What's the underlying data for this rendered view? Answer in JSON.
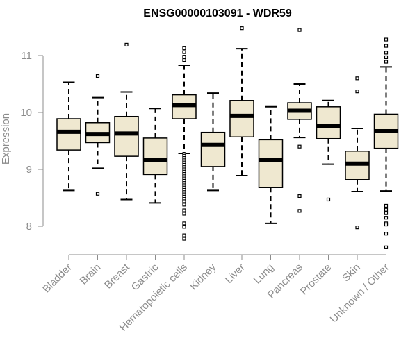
{
  "chart_data": {
    "type": "boxplot",
    "title": "ENSG00000103091 - WDR59",
    "xlabel": "",
    "ylabel": "Expression",
    "ylim": [
      7.6,
      11.5
    ],
    "yticks": [
      8,
      9,
      10,
      11
    ],
    "categories": [
      "Bladder",
      "Brain",
      "Breast",
      "Gastric",
      "Hematopoietic cells",
      "Kidney",
      "Liver",
      "Lung",
      "Pancreas",
      "Prostate",
      "Skin",
      "Unknown / Other"
    ],
    "boxes": [
      {
        "name": "Bladder",
        "whisker_low": 8.63,
        "q1": 9.34,
        "median": 9.66,
        "q3": 9.89,
        "whisker_high": 10.53,
        "outliers": []
      },
      {
        "name": "Brain",
        "whisker_low": 9.02,
        "q1": 9.47,
        "median": 9.62,
        "q3": 9.82,
        "whisker_high": 10.26,
        "outliers": [
          10.64,
          8.57
        ]
      },
      {
        "name": "Breast",
        "whisker_low": 8.47,
        "q1": 9.23,
        "median": 9.63,
        "q3": 9.93,
        "whisker_high": 10.36,
        "outliers": [
          11.19
        ]
      },
      {
        "name": "Gastric",
        "whisker_low": 8.41,
        "q1": 8.91,
        "median": 9.16,
        "q3": 9.55,
        "whisker_high": 10.07,
        "outliers": []
      },
      {
        "name": "Hematopoietic cells",
        "whisker_low": 9.28,
        "q1": 9.89,
        "median": 10.13,
        "q3": 10.31,
        "whisker_high": 10.83,
        "outliers": [
          11.13,
          11.06,
          10.98,
          10.92,
          9.27,
          9.24,
          9.2,
          9.16,
          9.12,
          9.08,
          9.04,
          9.0,
          8.96,
          8.92,
          8.88,
          8.84,
          8.8,
          8.76,
          8.72,
          8.68,
          8.64,
          8.6,
          8.56,
          8.52,
          8.48,
          8.44,
          8.38,
          8.28,
          8.22,
          8.05,
          7.99,
          7.84,
          7.78
        ]
      },
      {
        "name": "Kidney",
        "whisker_low": 8.63,
        "q1": 9.05,
        "median": 9.43,
        "q3": 9.65,
        "whisker_high": 10.34,
        "outliers": []
      },
      {
        "name": "Liver",
        "whisker_low": 8.89,
        "q1": 9.57,
        "median": 9.94,
        "q3": 10.21,
        "whisker_high": 11.12,
        "outliers": [
          11.48
        ]
      },
      {
        "name": "Lung",
        "whisker_low": 8.05,
        "q1": 8.68,
        "median": 9.17,
        "q3": 9.52,
        "whisker_high": 10.1,
        "outliers": []
      },
      {
        "name": "Pancreas",
        "whisker_low": 9.56,
        "q1": 9.88,
        "median": 10.03,
        "q3": 10.17,
        "whisker_high": 10.5,
        "outliers": [
          11.45,
          9.4,
          8.53,
          8.27
        ]
      },
      {
        "name": "Prostate",
        "whisker_low": 9.09,
        "q1": 9.54,
        "median": 9.76,
        "q3": 10.1,
        "whisker_high": 10.21,
        "outliers": [
          8.47
        ]
      },
      {
        "name": "Skin",
        "whisker_low": 8.61,
        "q1": 8.82,
        "median": 9.1,
        "q3": 9.32,
        "whisker_high": 9.72,
        "outliers": [
          10.6,
          10.37,
          7.98
        ]
      },
      {
        "name": "Unknown / Other",
        "whisker_low": 8.62,
        "q1": 9.37,
        "median": 9.67,
        "q3": 9.97,
        "whisker_high": 10.8,
        "outliers": [
          11.28,
          11.17,
          11.05,
          10.97,
          10.89,
          8.36,
          8.29,
          8.23,
          8.15,
          8.05,
          8.03,
          7.87,
          7.63
        ]
      }
    ],
    "box_fill": "#efe8d0",
    "stroke_color": "#000000",
    "axis_color": "#8c8c8c"
  }
}
